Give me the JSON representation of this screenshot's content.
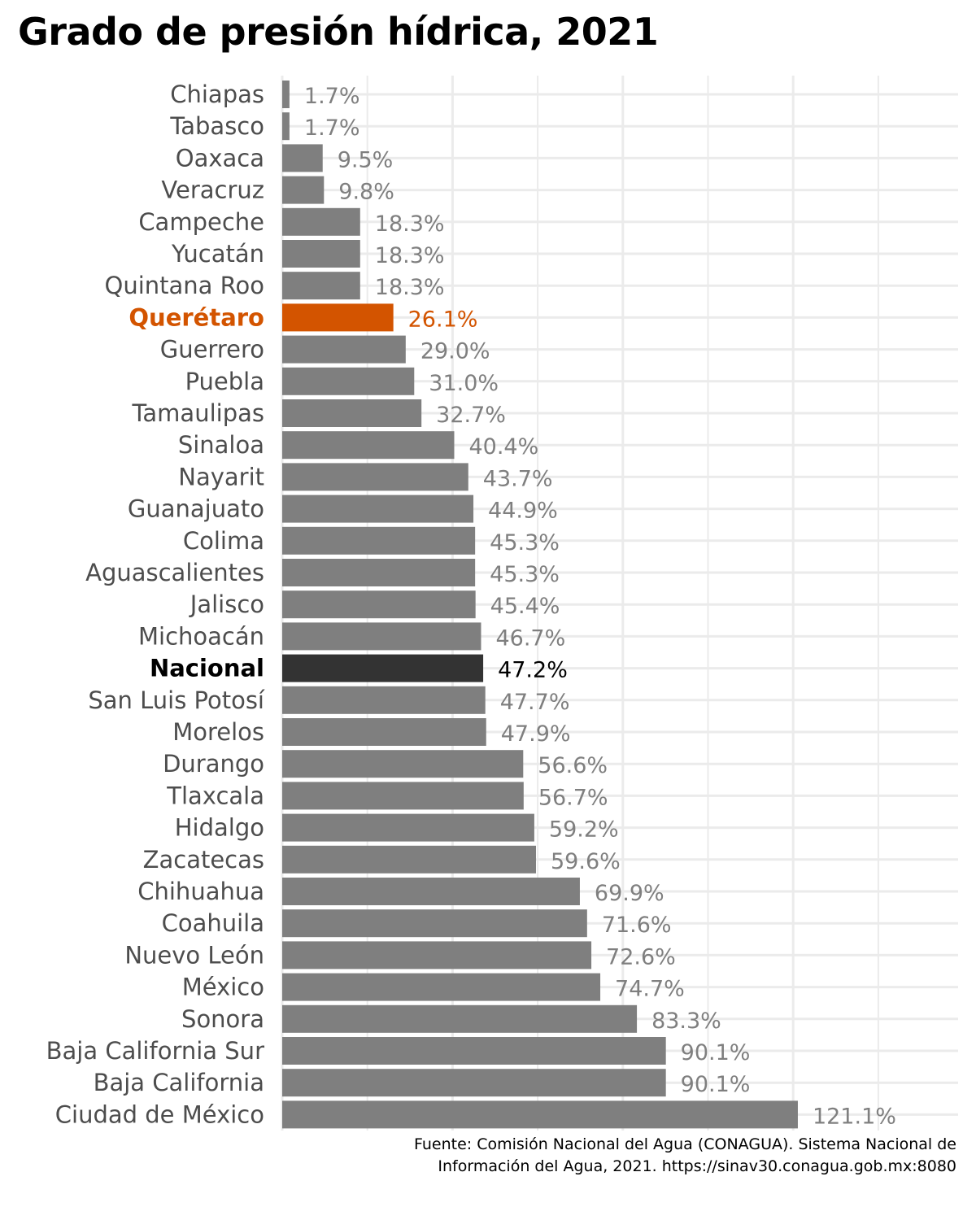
{
  "title": "Grado de presión hídrica, 2021",
  "caption": {
    "line1": "Fuente: Comisión Nacional del Agua (CONAGUA). Sistema Nacional de",
    "line2": "Información del Agua, 2021. https://sinav30.conagua.gob.mx:8080"
  },
  "colors": {
    "bar_default": "#7f7f7f",
    "bar_highlight": "#d35400",
    "bar_national": "#333333",
    "label_default": "#7f7f7f",
    "label_national": "#000000",
    "category_default": "#4d4d4d",
    "category_highlight": "#d35400",
    "category_national": "#000000",
    "grid": "#ebebeb"
  },
  "chart_data": {
    "type": "bar",
    "orientation": "horizontal",
    "title": "Grado de presión hídrica, 2021",
    "xlabel": "",
    "ylabel": "",
    "xlim": [
      0,
      130
    ],
    "grid": true,
    "highlight": "Querétaro",
    "national": "Nacional",
    "categories": [
      "Chiapas",
      "Tabasco",
      "Oaxaca",
      "Veracruz",
      "Campeche",
      "Yucatán",
      "Quintana Roo",
      "Querétaro",
      "Guerrero",
      "Puebla",
      "Tamaulipas",
      "Sinaloa",
      "Nayarit",
      "Guanajuato",
      "Colima",
      "Aguascalientes",
      "Jalisco",
      "Michoacán",
      "Nacional",
      "San Luis Potosí",
      "Morelos",
      "Durango",
      "Tlaxcala",
      "Hidalgo",
      "Zacatecas",
      "Chihuahua",
      "Coahuila",
      "Nuevo León",
      "México",
      "Sonora",
      "Baja California Sur",
      "Baja California",
      "Ciudad de México"
    ],
    "values": [
      1.7,
      1.7,
      9.5,
      9.8,
      18.3,
      18.3,
      18.3,
      26.1,
      29.0,
      31.0,
      32.7,
      40.4,
      43.7,
      44.9,
      45.3,
      45.3,
      45.4,
      46.7,
      47.2,
      47.7,
      47.9,
      56.6,
      56.7,
      59.2,
      59.6,
      69.9,
      71.6,
      72.6,
      74.7,
      83.3,
      90.1,
      90.1,
      121.1
    ],
    "data_labels": [
      "1.7%",
      "1.7%",
      "9.5%",
      "9.8%",
      "18.3%",
      "18.3%",
      "18.3%",
      "26.1%",
      "29.0%",
      "31.0%",
      "32.7%",
      "40.4%",
      "43.7%",
      "44.9%",
      "45.3%",
      "45.3%",
      "45.4%",
      "46.7%",
      "47.2%",
      "47.7%",
      "47.9%",
      "56.6%",
      "56.7%",
      "59.2%",
      "59.6%",
      "69.9%",
      "71.6%",
      "72.6%",
      "74.7%",
      "83.3%",
      "90.1%",
      "90.1%",
      "121.1%"
    ]
  }
}
